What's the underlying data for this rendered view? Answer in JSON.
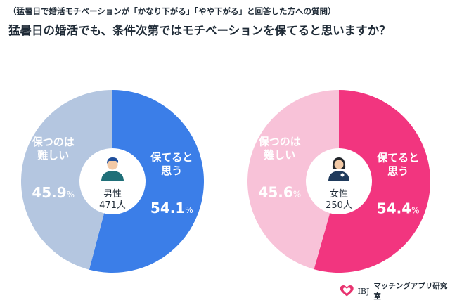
{
  "header": {
    "subtitle": "（猛暑日で婚活モチベーションが「かなり下がる」「やや下がる」と回答した方への質問）",
    "title": "猛暑日の婚活でも、条件次第ではモチベーションを保てると思いますか？"
  },
  "chart_data": [
    {
      "type": "pie",
      "donut": true,
      "center_label": [
        "男性",
        "471人"
      ],
      "slices": [
        {
          "label": [
            "保てると",
            "思う"
          ],
          "value": 54.1,
          "value_text": "54.1",
          "color": "#3b7ee8",
          "text_color": "#ffffff"
        },
        {
          "label": [
            "保つのは",
            "難しい"
          ],
          "value": 45.9,
          "value_text": "45.9",
          "color": "#b4c6e0",
          "text_color": "#ffffff"
        }
      ],
      "unit": "%"
    },
    {
      "type": "pie",
      "donut": true,
      "center_label": [
        "女性",
        "250人"
      ],
      "slices": [
        {
          "label": [
            "保てると",
            "思う"
          ],
          "value": 54.4,
          "value_text": "54.4",
          "color": "#f2357f",
          "text_color": "#ffffff"
        },
        {
          "label": [
            "保つのは",
            "難しい"
          ],
          "value": 45.6,
          "value_text": "45.6",
          "color": "#f8c2d8",
          "text_color": "#ffffff"
        }
      ],
      "unit": "%"
    }
  ],
  "footer": {
    "brand": "IBJ",
    "text": "マッチングアプリ研究室"
  }
}
